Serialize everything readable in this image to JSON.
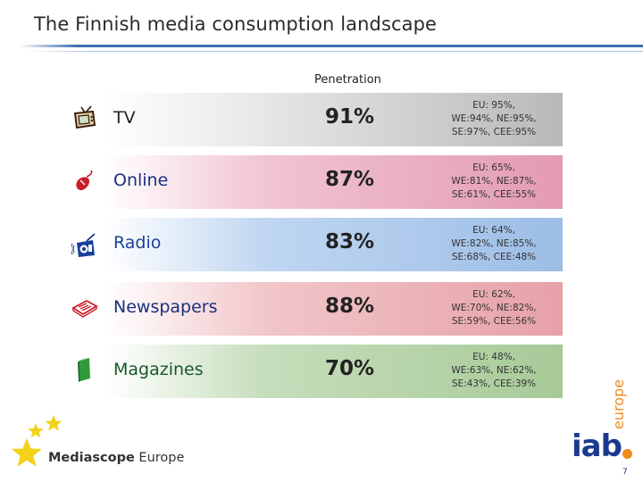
{
  "title": "The Finnish media consumption landscape",
  "column_header": "Penetration",
  "rows": [
    {
      "label": "TV",
      "penetration": "91%",
      "details": [
        "EU: 95%,",
        "WE:94%, NE:95%,",
        "SE:97%, CEE:95%"
      ],
      "label_color": "#222222",
      "band_color": "#c8c8c8",
      "icon": "tv-icon"
    },
    {
      "label": "Online",
      "penetration": "87%",
      "details": [
        "EU: 65%,",
        "WE:81%, NE:87%,",
        "SE:61%, CEE:55%"
      ],
      "label_color": "#1a2f80",
      "band_color": "#e7a7bd",
      "icon": "computer-mouse-icon"
    },
    {
      "label": "Radio",
      "penetration": "83%",
      "details": [
        "EU: 64%,",
        "WE:82%, NE:85%,",
        "SE:68%, CEE:48%"
      ],
      "label_color": "#1a3f9a",
      "band_color": "#a9c6ea",
      "icon": "radio-icon"
    },
    {
      "label": "Newspapers",
      "penetration": "88%",
      "details": [
        "EU: 62%,",
        "WE:70%, NE:82%,",
        "SE:59%, CEE:56%"
      ],
      "label_color": "#1a2f80",
      "band_color": "#eab0b4",
      "icon": "newspaper-icon"
    },
    {
      "label": "Magazines",
      "penetration": "70%",
      "details": [
        "EU: 48%,",
        "WE:63%, NE:62%,",
        "SE:43%, CEE:39%"
      ],
      "label_color": "#17582a",
      "band_color": "#b3d2a6",
      "icon": "magazine-icon"
    }
  ],
  "footer": {
    "brand_bold": "Mediascope",
    "brand_regular": " Europe",
    "iab_main": "iab",
    "iab_sub": "europe",
    "page_number": "7"
  },
  "colors": {
    "accent_blue": "#3f6fb5",
    "iab_blue": "#1b3a8e",
    "iab_orange": "#f08a1c",
    "star_yellow": "#f2d21b"
  }
}
